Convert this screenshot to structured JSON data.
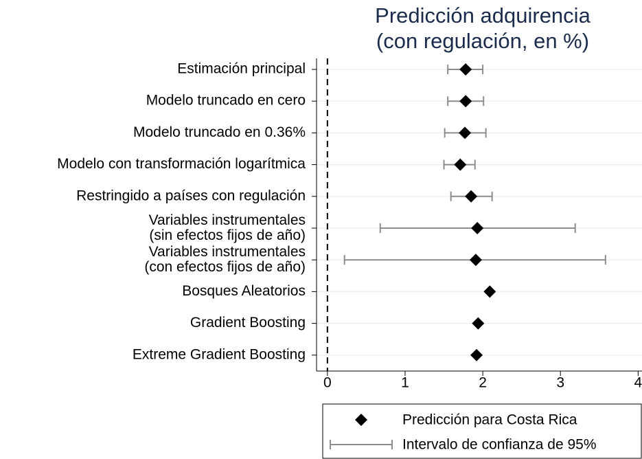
{
  "chart_data": {
    "type": "dotci",
    "title": [
      "Predicción adquirencia",
      "(con regulación, en %)"
    ],
    "categories": [
      "Estimación principal",
      "Modelo truncado en cero",
      "Modelo truncado en 0.36%",
      "Modelo con transformación logarítmica",
      "Restringido a países con regulación",
      [
        "Variables instrumentales",
        "(sin efectos fijos de año)"
      ],
      [
        "Variables instrumentales",
        "(con efectos fijos de año)"
      ],
      "Bosques Aleatorios",
      "Gradient Boosting",
      "Extreme Gradient Boosting"
    ],
    "series": [
      {
        "name": "Predicción para Costa Rica",
        "color": "#000000",
        "values": [
          1.78,
          1.78,
          1.77,
          1.71,
          1.85,
          1.93,
          1.91,
          2.09,
          1.94,
          1.92
        ]
      },
      {
        "name": "Intervalo de confianza de 95%",
        "color": "#8c8c8c",
        "lower": [
          1.55,
          1.55,
          1.51,
          1.5,
          1.59,
          0.68,
          0.22,
          null,
          null,
          null
        ],
        "upper": [
          2.0,
          2.01,
          2.04,
          1.9,
          2.12,
          3.19,
          3.58,
          null,
          null,
          null
        ]
      }
    ],
    "xlim": [
      -0.14,
      4.05
    ],
    "xticks": [
      0,
      1,
      2,
      3,
      4
    ],
    "reference_line": 0,
    "grid": true
  }
}
